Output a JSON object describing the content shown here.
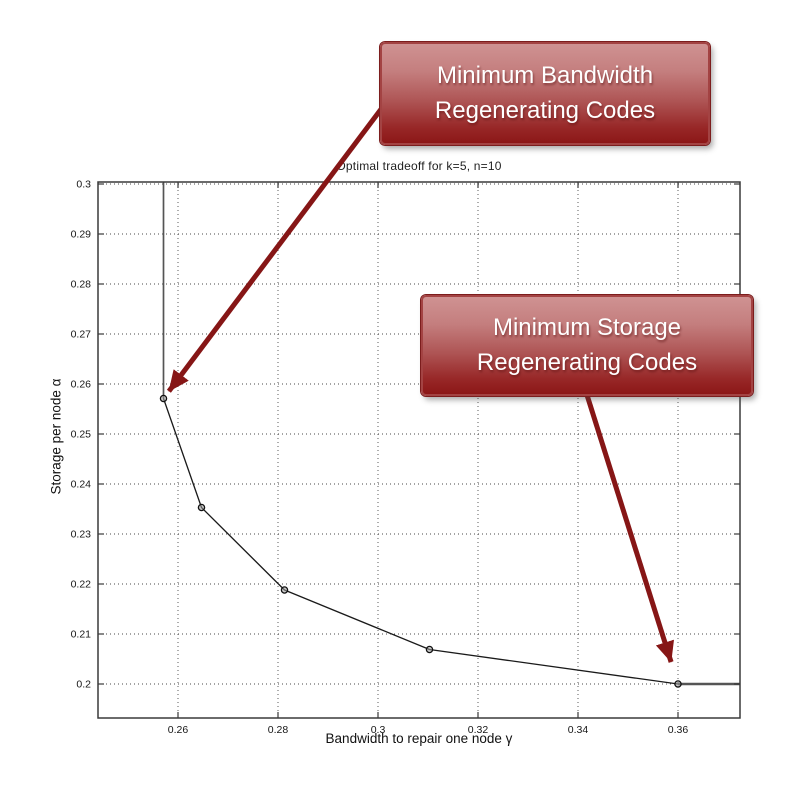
{
  "chart_data": {
    "type": "line",
    "title": "Optimal tradeoff for k=5, n=10",
    "xlabel": "Bandwidth to repair one node γ",
    "ylabel": "Storage per node α",
    "xlim": [
      0.244,
      0.3724
    ],
    "ylim": [
      0.1932,
      0.3004
    ],
    "xticks": [
      0.26,
      0.28,
      0.3,
      0.32,
      0.34,
      0.36
    ],
    "yticks": [
      0.2,
      0.21,
      0.22,
      0.23,
      0.24,
      0.25,
      0.26,
      0.27,
      0.28,
      0.29,
      0.3
    ],
    "grid": true,
    "grid_style": "dotted",
    "legend": "none",
    "series": [
      {
        "name": "optimal-tradeoff-curve",
        "marker": "o",
        "points": [
          [
            0.2571,
            0.2571
          ],
          [
            0.2647,
            0.2353
          ],
          [
            0.2813,
            0.2188
          ],
          [
            0.3103,
            0.2069
          ],
          [
            0.36,
            0.2
          ]
        ]
      }
    ],
    "extra_lines": [
      {
        "name": "mbr-vertical-asymptote",
        "from": [
          0.2571,
          "ymax"
        ],
        "to": [
          0.2571,
          0.2571
        ]
      },
      {
        "name": "msr-horizontal-asymptote",
        "from": [
          0.36,
          0.2
        ],
        "to": [
          "xmax",
          0.2
        ]
      }
    ],
    "annotations": [
      {
        "id": "mbr",
        "line1": "Minimum Bandwidth",
        "line2": "Regenerating Codes",
        "target": [
          0.2571,
          0.2571
        ]
      },
      {
        "id": "msr",
        "line1": "Minimum Storage",
        "line2": "Regenerating Codes",
        "target": [
          0.36,
          0.2
        ]
      }
    ]
  },
  "colors": {
    "curve": "#1a1a1a",
    "asymptote": "#555555",
    "grid": "#4a4a4a",
    "axis_box": "#3a3a3a",
    "arrow": "#861616",
    "callout_top": "#cf9292",
    "callout_bottom": "#8c1717",
    "callout_border": "#a34343",
    "callout_text": "#ffffff"
  }
}
